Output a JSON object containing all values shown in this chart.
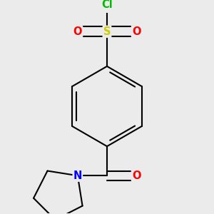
{
  "background_color": "#ebebeb",
  "atom_colors": {
    "C": "#000000",
    "O": "#ff0000",
    "S": "#cccc00",
    "Cl": "#00bb00",
    "N": "#0000ff"
  },
  "bond_color": "#000000",
  "bond_width": 1.5,
  "font_size": 10.5,
  "figsize": [
    3.0,
    3.0
  ],
  "dpi": 100
}
